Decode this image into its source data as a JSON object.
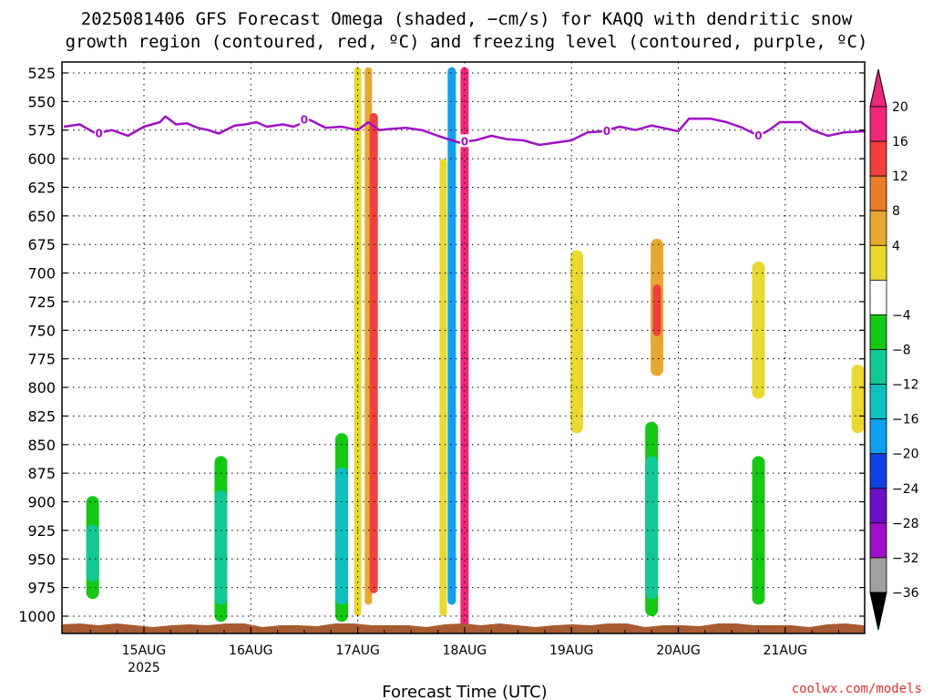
{
  "title": {
    "line1": "2025081406 GFS Forecast Omega (shaded, −cm/s) for KAQQ with dendritic snow",
    "line2": "growth region (contoured, red, ºC) and freezing level (contoured, purple, ºC)"
  },
  "watermark": "coolwx.com/models",
  "chart_data": {
    "type": "time-height cross section",
    "title": "2025081406 GFS Forecast Omega (shaded, −cm/s) for KAQQ with dendritic snow growth region (contoured, red, ºC) and freezing level (contoured, purple, ºC)",
    "xlabel": "Forecast Time (UTC)",
    "ylabel": "",
    "x_ticks": [
      {
        "label": "15AUG",
        "sublabel": "2025",
        "day": 15
      },
      {
        "label": "16AUG",
        "sublabel": "",
        "day": 16
      },
      {
        "label": "17AUG",
        "sublabel": "",
        "day": 17
      },
      {
        "label": "18AUG",
        "sublabel": "",
        "day": 18
      },
      {
        "label": "19AUG",
        "sublabel": "",
        "day": 19
      },
      {
        "label": "20AUG",
        "sublabel": "",
        "day": 20
      },
      {
        "label": "21AUG",
        "sublabel": "",
        "day": 21
      }
    ],
    "xlim_day": [
      14.25,
      21.75
    ],
    "y_ticks": [
      "525",
      "550",
      "575",
      "600",
      "625",
      "650",
      "675",
      "700",
      "725",
      "750",
      "775",
      "800",
      "825",
      "850",
      "875",
      "900",
      "925",
      "950",
      "975",
      "1000"
    ],
    "ylim_hpa": [
      1013,
      520
    ],
    "grid": "dotted",
    "colorbar": {
      "position": "right",
      "labels": [
        "20",
        "16",
        "12",
        "8",
        "4",
        "−4",
        "−8",
        "−12",
        "−16",
        "−20",
        "−24",
        "−28",
        "−32",
        "−36"
      ],
      "colors": [
        "#f0287a",
        "#f04040",
        "#e87c28",
        "#e8a830",
        "#e8d830",
        "#ffffff",
        "#14c814",
        "#12c896",
        "#10c0c0",
        "#10a0f0",
        "#1040e0",
        "#6a10c8",
        "#a010c8",
        "#a0a0a0"
      ],
      "arrow_top_color": "#e8287a",
      "arrow_bottom_color": "#000000"
    },
    "freezing_level": {
      "label": "0",
      "color": "#a010c8",
      "points": [
        [
          14.25,
          572
        ],
        [
          14.4,
          570
        ],
        [
          14.55,
          578
        ],
        [
          14.7,
          575
        ],
        [
          14.85,
          580
        ],
        [
          15.0,
          572
        ],
        [
          15.15,
          568
        ],
        [
          15.2,
          563
        ],
        [
          15.3,
          570
        ],
        [
          15.4,
          569
        ],
        [
          15.5,
          573
        ],
        [
          15.6,
          575
        ],
        [
          15.7,
          578
        ],
        [
          15.85,
          571
        ],
        [
          15.95,
          570
        ],
        [
          16.05,
          568
        ],
        [
          16.15,
          572
        ],
        [
          16.3,
          570
        ],
        [
          16.4,
          572
        ],
        [
          16.55,
          566
        ],
        [
          16.7,
          573
        ],
        [
          16.85,
          572
        ],
        [
          17.0,
          575
        ],
        [
          17.1,
          568
        ],
        [
          17.2,
          575
        ],
        [
          17.3,
          574
        ],
        [
          17.45,
          573
        ],
        [
          17.6,
          575
        ],
        [
          17.75,
          580
        ],
        [
          17.85,
          583
        ],
        [
          17.95,
          586
        ],
        [
          18.0,
          585
        ],
        [
          18.1,
          584
        ],
        [
          18.25,
          580
        ],
        [
          18.4,
          583
        ],
        [
          18.55,
          584
        ],
        [
          18.7,
          588
        ],
        [
          18.85,
          586
        ],
        [
          19.0,
          584
        ],
        [
          19.15,
          577
        ],
        [
          19.3,
          576
        ],
        [
          19.45,
          572
        ],
        [
          19.6,
          575
        ],
        [
          19.75,
          571
        ],
        [
          19.9,
          574
        ],
        [
          20.0,
          576
        ],
        [
          20.1,
          565
        ],
        [
          20.3,
          565
        ],
        [
          20.45,
          568
        ],
        [
          20.6,
          573
        ],
        [
          20.75,
          580
        ],
        [
          20.85,
          575
        ],
        [
          20.95,
          568
        ],
        [
          21.15,
          568
        ],
        [
          21.25,
          575
        ],
        [
          21.4,
          580
        ],
        [
          21.55,
          577
        ],
        [
          21.75,
          576
        ]
      ]
    },
    "omega_features": [
      {
        "day": 14.52,
        "p_top": 895,
        "p_bot": 985,
        "value": -6,
        "color": "#14c814"
      },
      {
        "day": 14.52,
        "p_top": 920,
        "p_bot": 970,
        "value": -9,
        "color": "#12c896"
      },
      {
        "day": 15.72,
        "p_top": 860,
        "p_bot": 1005,
        "value": -6,
        "color": "#14c814"
      },
      {
        "day": 15.72,
        "p_top": 890,
        "p_bot": 990,
        "value": -10,
        "color": "#12c896"
      },
      {
        "day": 16.85,
        "p_top": 840,
        "p_bot": 1005,
        "value": -6,
        "color": "#14c814"
      },
      {
        "day": 16.85,
        "p_top": 870,
        "p_bot": 990,
        "value": -12,
        "color": "#10c0c0"
      },
      {
        "day": 17.0,
        "p_top": 520,
        "p_bot": 1000,
        "value": 6,
        "color": "#e8d830"
      },
      {
        "day": 17.1,
        "p_top": 520,
        "p_bot": 990,
        "value": 10,
        "color": "#e8a830"
      },
      {
        "day": 17.15,
        "p_top": 560,
        "p_bot": 980,
        "value": 18,
        "color": "#f04040"
      },
      {
        "day": 17.8,
        "p_top": 600,
        "p_bot": 1000,
        "value": 6,
        "color": "#e8d830"
      },
      {
        "day": 18.0,
        "p_top": 520,
        "p_bot": 1010,
        "value": 20,
        "color": "#f0287a"
      },
      {
        "day": 17.88,
        "p_top": 520,
        "p_bot": 990,
        "value": -16,
        "color": "#10a0f0"
      },
      {
        "day": 19.05,
        "p_top": 680,
        "p_bot": 840,
        "value": 6,
        "color": "#e8d830"
      },
      {
        "day": 19.8,
        "p_top": 670,
        "p_bot": 790,
        "value": 8,
        "color": "#e8a830"
      },
      {
        "day": 19.8,
        "p_top": 710,
        "p_bot": 755,
        "value": 16,
        "color": "#f04040"
      },
      {
        "day": 19.75,
        "p_top": 830,
        "p_bot": 1000,
        "value": -7,
        "color": "#14c814"
      },
      {
        "day": 19.75,
        "p_top": 860,
        "p_bot": 985,
        "value": -10,
        "color": "#12c896"
      },
      {
        "day": 20.75,
        "p_top": 690,
        "p_bot": 810,
        "value": 6,
        "color": "#e8d830"
      },
      {
        "day": 20.75,
        "p_top": 860,
        "p_bot": 990,
        "value": -6,
        "color": "#14c814"
      },
      {
        "day": 21.68,
        "p_top": 780,
        "p_bot": 840,
        "value": 6,
        "color": "#e8d830"
      }
    ]
  }
}
